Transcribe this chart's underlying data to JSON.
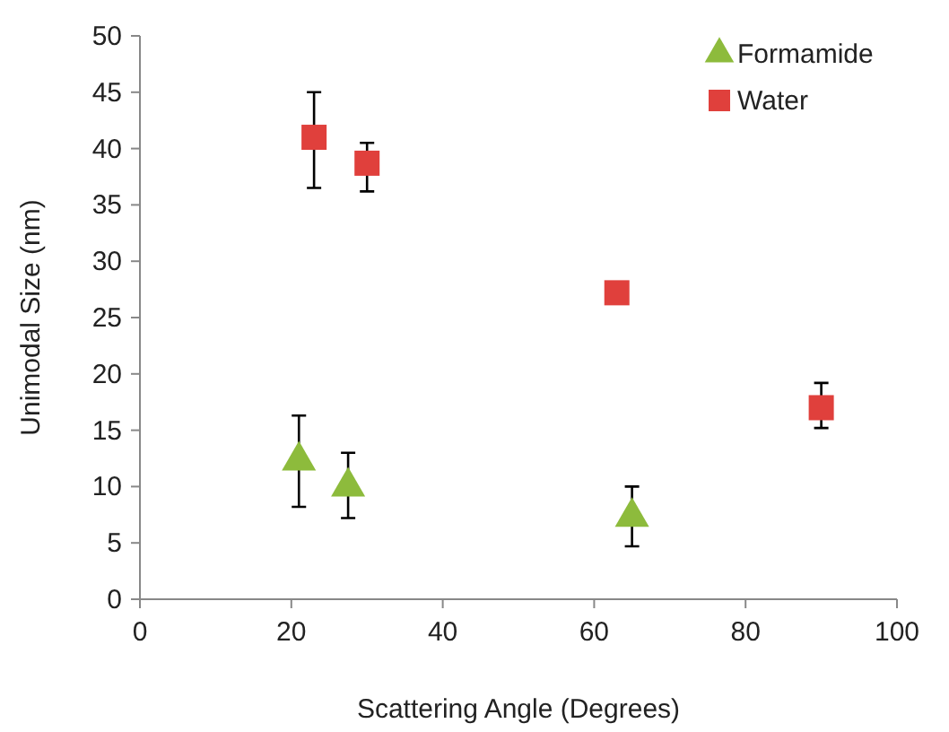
{
  "chart_data": {
    "type": "scatter",
    "xlabel": "Scattering Angle (Degrees)",
    "ylabel": "Unimodal Size (nm)",
    "xlim": [
      0,
      100
    ],
    "xticks": [
      0,
      20,
      40,
      60,
      80,
      100
    ],
    "ylim": [
      0,
      50
    ],
    "yticks": [
      0,
      5,
      10,
      15,
      20,
      25,
      30,
      35,
      40,
      45,
      50
    ],
    "grid": false,
    "legend": "top right",
    "series": [
      {
        "name": "Formamide",
        "color": "#8dbb3c",
        "marker": "triangle",
        "x": [
          21,
          27.5,
          65
        ],
        "values": [
          12.3,
          10,
          7.3
        ],
        "errors": [
          [
            8.2,
            16.3
          ],
          [
            7.2,
            13
          ],
          [
            4.7,
            10
          ]
        ]
      },
      {
        "name": "Water",
        "color": "#e0403c",
        "marker": "square",
        "x": [
          23,
          30,
          63,
          90
        ],
        "values": [
          41,
          38.7,
          27.2,
          17
        ],
        "errors": [
          [
            36.5,
            45
          ],
          [
            36.2,
            40.5
          ],
          null,
          [
            15.2,
            19.2
          ]
        ]
      }
    ]
  }
}
